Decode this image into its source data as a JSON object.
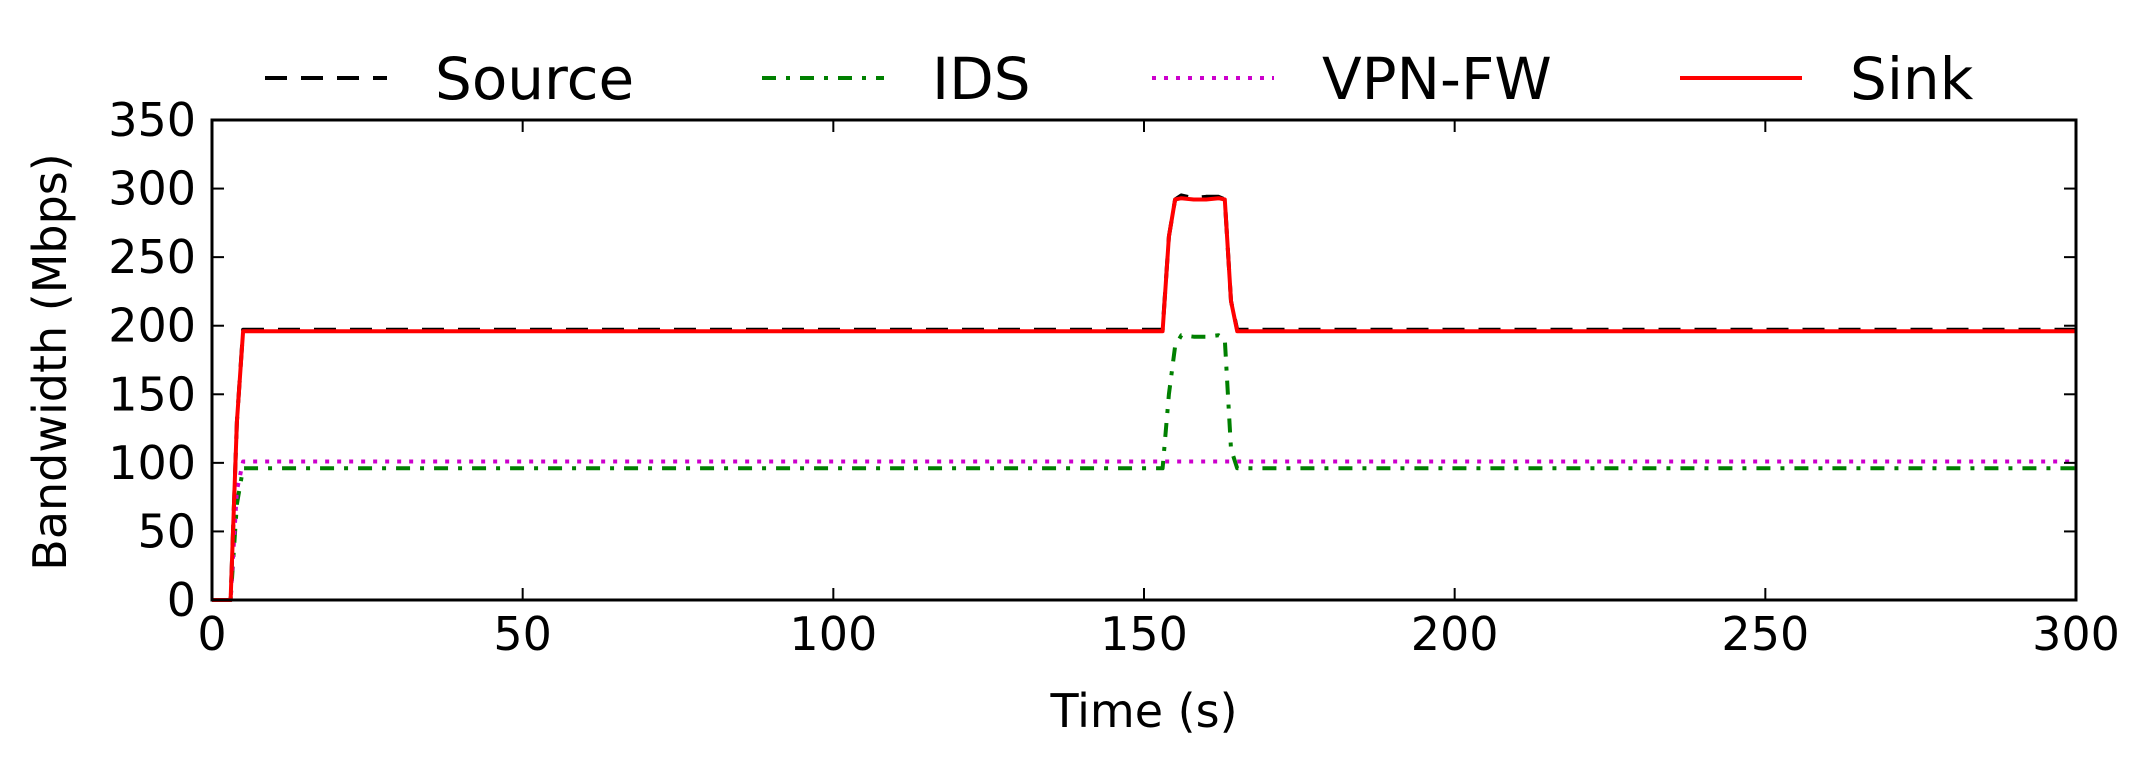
{
  "chart_data": {
    "type": "line",
    "xlabel": "Time (s)",
    "ylabel": "Bandwidth (Mbps)",
    "xlim": [
      0,
      300
    ],
    "ylim": [
      0,
      350
    ],
    "xticks": [
      0,
      50,
      100,
      150,
      200,
      250,
      300
    ],
    "yticks": [
      0,
      50,
      100,
      150,
      200,
      250,
      300,
      350
    ],
    "grid": false,
    "legend_position": "top",
    "series": [
      {
        "name": "Source",
        "color": "#000000",
        "style": "dashed",
        "x": [
          0,
          2,
          3,
          4,
          5,
          10,
          20,
          40,
          60,
          80,
          100,
          120,
          140,
          150,
          153,
          154,
          155,
          156,
          158,
          160,
          162,
          163,
          164,
          165,
          170,
          200,
          250,
          300
        ],
        "y": [
          0,
          0,
          0,
          130,
          197,
          197,
          197,
          197,
          197,
          197,
          197,
          197,
          197,
          197,
          197,
          265,
          292,
          295,
          293,
          294,
          294,
          292,
          218,
          197,
          197,
          197,
          197,
          197
        ]
      },
      {
        "name": "IDS",
        "color": "#008000",
        "style": "dashdot",
        "x": [
          0,
          2,
          3,
          4,
          5,
          10,
          20,
          40,
          60,
          80,
          100,
          120,
          140,
          150,
          153,
          154,
          155,
          156,
          158,
          160,
          162,
          163,
          164,
          165,
          170,
          200,
          250,
          300
        ],
        "y": [
          0,
          0,
          0,
          70,
          96,
          96,
          96,
          96,
          96,
          96,
          96,
          96,
          96,
          96,
          96,
          150,
          185,
          193,
          192,
          192,
          193,
          190,
          110,
          96,
          96,
          96,
          96,
          96
        ]
      },
      {
        "name": "VPN-FW",
        "color": "#cc00cc",
        "style": "dotted",
        "x": [
          0,
          2,
          3,
          4,
          5,
          10,
          50,
          100,
          150,
          200,
          250,
          300
        ],
        "y": [
          0,
          0,
          0,
          80,
          101,
          101,
          101,
          101,
          101,
          101,
          101,
          101
        ]
      },
      {
        "name": "Sink",
        "color": "#ff0000",
        "style": "solid",
        "x": [
          0,
          2,
          3,
          4,
          5,
          10,
          20,
          40,
          60,
          80,
          100,
          120,
          140,
          150,
          153,
          154,
          155,
          156,
          158,
          160,
          162,
          163,
          164,
          165,
          170,
          200,
          250,
          300
        ],
        "y": [
          0,
          0,
          0,
          130,
          196,
          196,
          196,
          196,
          196,
          196,
          196,
          196,
          196,
          196,
          196,
          265,
          292,
          293,
          292,
          292,
          293,
          292,
          218,
          196,
          196,
          196,
          196,
          196
        ]
      }
    ]
  }
}
